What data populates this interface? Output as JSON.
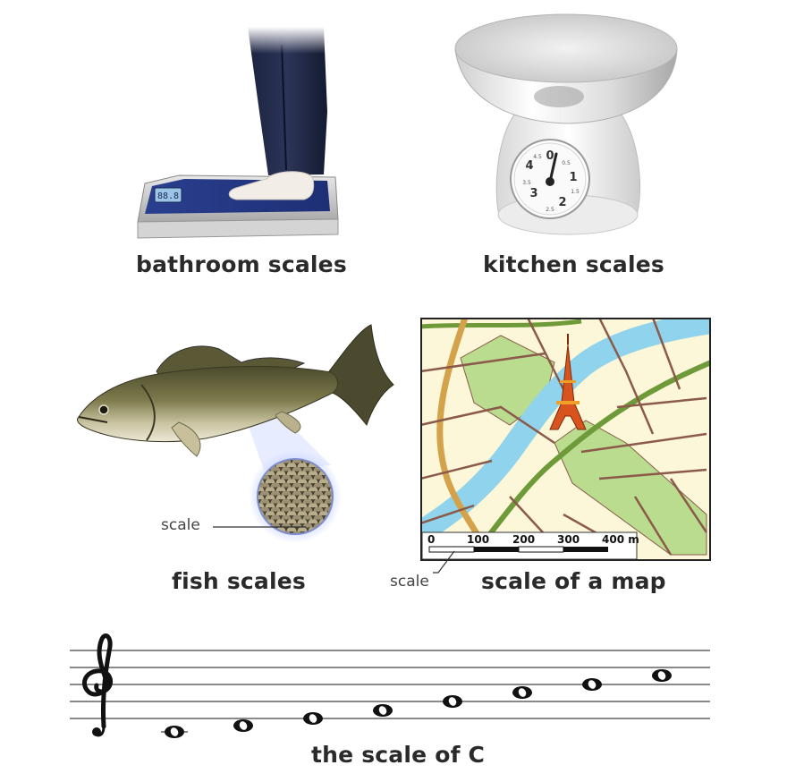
{
  "captions": {
    "bathroom": "bathroom scales",
    "kitchen": "kitchen scales",
    "fish": "fish scales",
    "map": "scale of a map",
    "music": "the scale of C"
  },
  "fish_pointer_label": "scale",
  "map_pointer_label": "scale",
  "bathroom_display": "88.8",
  "kitchen_dial": {
    "major": [
      "0",
      "1",
      "2",
      "3",
      "4"
    ],
    "minor": [
      "0.5",
      "1.5",
      "2.5",
      "3.5",
      "4.5"
    ]
  },
  "map_scale_bar": [
    "0",
    "100",
    "200",
    "300",
    "400 m"
  ],
  "colors": {
    "river": "#8fd3ec",
    "park": "#b9dc8e",
    "road": "#8b5a4a",
    "main_road": "#6e9a3a",
    "land": "#fdf7d9",
    "tower": "#d9531e"
  }
}
